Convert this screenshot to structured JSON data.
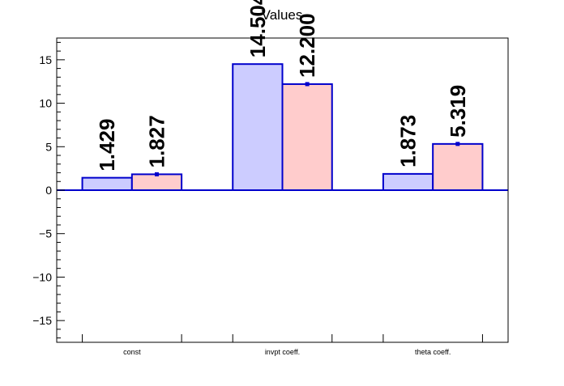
{
  "chart_data": {
    "type": "bar",
    "title": "Values",
    "categories": [
      "const",
      "invpt coeff.",
      "theta coeff."
    ],
    "series": [
      {
        "values": [
          1.429,
          14.504,
          1.873
        ],
        "labels": [
          "1.429",
          "14.504",
          "1.873"
        ],
        "fill": "#ccccff",
        "stroke": "#0000cc"
      },
      {
        "values": [
          1.827,
          12.2,
          5.319
        ],
        "labels": [
          "1.827",
          "12.200",
          "5.319"
        ],
        "fill": "#ffcccc",
        "stroke": "#0000cc",
        "error_bars": true
      }
    ],
    "ylim": [
      -17.5,
      17.5
    ],
    "yticks": [
      -15,
      -10,
      -5,
      0,
      5,
      10,
      15
    ],
    "ytick_labels": [
      "−15",
      "−10",
      "−5",
      "0",
      "5",
      "10",
      "15"
    ],
    "xlabel": "",
    "ylabel": "",
    "grid": false,
    "legend": "none",
    "axis_color": "#000000",
    "zero_line_color": "#0000cc"
  }
}
